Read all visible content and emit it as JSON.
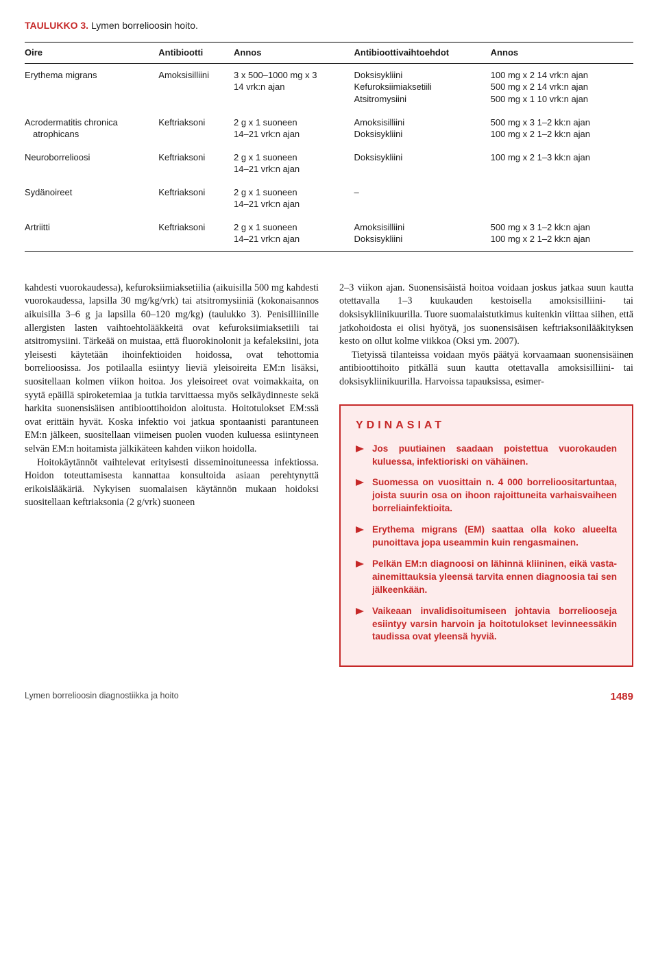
{
  "table": {
    "title_num": "TAULUKKO 3.",
    "title_txt": "Lymen borrelioosin hoito.",
    "headers": [
      "Oire",
      "Antibiootti",
      "Annos",
      "Antibioottivaihtoehdot",
      "Annos"
    ],
    "rows": [
      {
        "c0": "Erythema migrans",
        "c1": "Amoksisilliini",
        "c2a": "3 x 500–1000 mg x 3",
        "c2b": "14 vrk:n ajan",
        "c3a": "Doksisykliini",
        "c3b": "Kefuroksiimiaksetiili",
        "c3c": "Atsitromysiini",
        "c4a": "100 mg x 2  14 vrk:n ajan",
        "c4b": "500 mg x 2  14 vrk:n ajan",
        "c4c": "500 mg x 1  10 vrk:n ajan"
      },
      {
        "c0a": "Acrodermatitis chronica",
        "c0b": "atrophicans",
        "c1": "Keftriaksoni",
        "c2a": "2 g x 1 suoneen",
        "c2b": "14–21 vrk:n ajan",
        "c3a": "Amoksisilliini",
        "c3b": "Doksisykliini",
        "c4a": "500 mg x 3  1–2 kk:n ajan",
        "c4b": "100 mg x 2  1–2 kk:n ajan"
      },
      {
        "c0": "Neuroborrelioosi",
        "c1": "Keftriaksoni",
        "c2a": "2 g x 1 suoneen",
        "c2b": "14–21 vrk:n ajan",
        "c3a": "Doksisykliini",
        "c4a": "100 mg x 2  1–3 kk:n ajan"
      },
      {
        "c0": "Sydänoireet",
        "c1": "Keftriaksoni",
        "c2a": "2 g x 1 suoneen",
        "c2b": "14–21 vrk:n ajan",
        "c3a": "–",
        "c4a": ""
      },
      {
        "c0": "Artriitti",
        "c1": "Keftriaksoni",
        "c2a": "2 g x 1 suoneen",
        "c2b": "14–21 vrk:n ajan",
        "c3a": "Amoksisilliini",
        "c3b": "Doksisykliini",
        "c4a": "500 mg x 3  1–2 kk:n ajan",
        "c4b": "100 mg x 2  1–2 kk:n ajan"
      }
    ]
  },
  "body": {
    "left_p1": "kahdesti vuorokaudessa), kefuroksiimiaksetiilia (aikuisilla 500 mg kahdesti vuorokaudessa, lapsilla 30 mg/kg/vrk) tai atsitromysiiniä (kokonaisannos aikuisilla 3–6 g ja lapsilla 60–120 mg/kg) (taulukko 3). Penisilliinille allergisten lasten vaihtoehtolääkkeitä ovat kefuroksiimiaksetiili tai atsitromysiini. Tärkeää on muistaa, että fluorokinolonit ja kefaleksiini, jota yleisesti käytetään ihoinfektioiden hoidossa, ovat tehottomia borrelioosissa. Jos potilaalla esiintyy lieviä yleisoireita EM:n lisäksi, suositellaan kolmen viikon hoitoa. Jos yleisoireet ovat voimakkaita, on syytä epäillä spiroketemiaa ja tutkia tarvittaessa myös selkäydinneste sekä harkita suonensisäisen antibioottihoidon aloitusta. Hoitotulokset EM:ssä ovat erittäin hyvät. Koska infektio voi jatkua spontaanisti parantuneen EM:n jälkeen, suositellaan viimeisen puolen vuoden kuluessa esiintyneen selvän EM:n hoitamista jälkikäteen kahden viikon hoidolla.",
    "left_p2": "Hoitokäytännöt vaihtelevat erityisesti disseminoituneessa infektiossa. Hoidon toteuttamisesta kannattaa konsultoida asiaan perehtynyttä erikoislääkäriä. Nykyisen suomalaisen käytännön mukaan hoidoksi suositellaan keftriaksonia (2 g/vrk) suoneen",
    "right_p1": "2–3 viikon ajan. Suonensisäistä hoitoa voidaan joskus jatkaa suun kautta otettavalla 1–3 kuukauden kestoisella amoksisilliini- tai doksisykliinikuurilla. Tuore suomalaistutkimus kuitenkin viittaa siihen, että jatkohoidosta ei olisi hyötyä, jos suonensisäisen keftriaksonilääkityksen kesto on ollut kolme viikkoa (Oksi ym. 2007).",
    "right_p2": "Tietyissä tilanteissa voidaan myös päätyä korvaamaan suonensisäinen antibioottihoito pitkällä suun kautta otettavalla amoksisilliini- tai doksisykliinikuurilla. Harvoissa tapauksissa, esimer-"
  },
  "ydin": {
    "title": "YDINASIAT",
    "items": [
      "Jos puutiainen saadaan poistettua vuorokauden kuluessa, infektioriski on vähäinen.",
      "Suomessa on vuosittain n. 4 000 borrelioositartuntaa, joista suurin osa on ihoon rajoittuneita varhaisvaiheen borreliainfektioita.",
      "Erythema migrans (EM) saattaa olla koko alueelta punoittava jopa useammin kuin rengasmainen.",
      "Pelkän EM:n diagnoosi on lähinnä kliininen, eikä vasta-ainemittauksia yleensä tarvita ennen diagnoosia tai sen jälkeenkään.",
      "Vaikeaan invalidisoitumiseen johtavia borreliooseja esiintyy varsin harvoin ja hoitotulokset levinneessäkin taudissa ovat yleensä hyviä."
    ]
  },
  "footer": {
    "left": "Lymen borrelioosin diagnostiikka ja hoito",
    "page": "1489"
  }
}
